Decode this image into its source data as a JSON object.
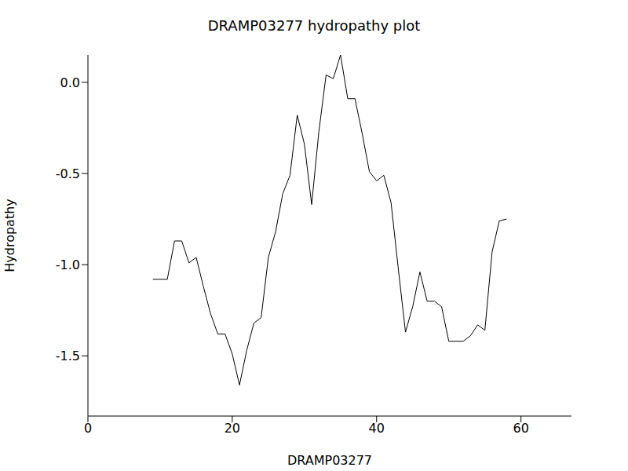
{
  "chart_data": {
    "type": "line",
    "title": "DRAMP03277 hydropathy plot",
    "x_label": "DRAMP03277",
    "y_label": "Hydropathy",
    "x": [
      9,
      10,
      11,
      12,
      13,
      14,
      15,
      16,
      17,
      18,
      19,
      20,
      21,
      22,
      23,
      24,
      25,
      26,
      27,
      28,
      29,
      30,
      31,
      32,
      33,
      34,
      35,
      36,
      37,
      38,
      39,
      40,
      41,
      42,
      43,
      44,
      45,
      46,
      47,
      48,
      49,
      50,
      51,
      52,
      53,
      54,
      55,
      56,
      57,
      58
    ],
    "values": [
      -1.08,
      -1.08,
      -1.08,
      -0.87,
      -0.87,
      -0.99,
      -0.96,
      -1.12,
      -1.27,
      -1.38,
      -1.38,
      -1.49,
      -1.66,
      -1.47,
      -1.32,
      -1.29,
      -0.96,
      -0.82,
      -0.61,
      -0.51,
      -0.18,
      -0.34,
      -0.67,
      -0.27,
      0.04,
      0.02,
      0.15,
      -0.09,
      -0.09,
      -0.28,
      -0.49,
      -0.54,
      -0.51,
      -0.66,
      -1.02,
      -1.37,
      -1.23,
      -1.04,
      -1.2,
      -1.2,
      -1.23,
      -1.42,
      -1.42,
      -1.42,
      -1.39,
      -1.33,
      -1.36,
      -0.93,
      -0.76,
      -0.75
    ],
    "color": "#000000",
    "xlim": [
      0,
      67
    ],
    "ylim": [
      -1.83,
      0.15
    ],
    "xticks": [
      0,
      20,
      40,
      60
    ],
    "yticks": [
      {
        "value": -1.5,
        "label": "-1.5"
      },
      {
        "value": -1.0,
        "label": "-1.0"
      },
      {
        "value": -0.5,
        "label": "-0.5"
      },
      {
        "value": 0.0,
        "label": "0.0"
      }
    ]
  }
}
